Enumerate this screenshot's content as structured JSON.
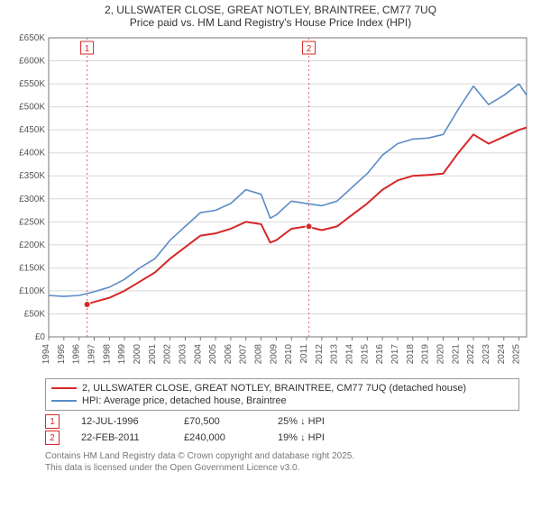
{
  "title_line1": "2, ULLSWATER CLOSE, GREAT NOTLEY, BRAINTREE, CM77 7UQ",
  "title_line2": "Price paid vs. HM Land Registry's House Price Index (HPI)",
  "chart": {
    "type": "line",
    "background_color": "#ffffff",
    "grid_color": "#d8d8d8",
    "plot_border_color": "#777777",
    "x_years": [
      1994,
      1995,
      1996,
      1997,
      1998,
      1999,
      2000,
      2001,
      2002,
      2003,
      2004,
      2005,
      2006,
      2007,
      2008,
      2009,
      2010,
      2011,
      2012,
      2013,
      2014,
      2015,
      2016,
      2017,
      2018,
      2019,
      2020,
      2021,
      2022,
      2023,
      2024,
      2025
    ],
    "xlim": [
      1994,
      2025.5
    ],
    "ylim": [
      0,
      650000
    ],
    "ytick_step": 50000,
    "yticks_labels": [
      "£0",
      "£50K",
      "£100K",
      "£150K",
      "£200K",
      "£250K",
      "£300K",
      "£350K",
      "£400K",
      "£450K",
      "£500K",
      "£550K",
      "£600K",
      "£650K"
    ],
    "marker_lines": [
      {
        "id": "1",
        "x": 1996.53,
        "color": "#d62728"
      },
      {
        "id": "2",
        "x": 2011.15,
        "color": "#d62728"
      }
    ],
    "series": [
      {
        "name": "property",
        "color": "#d62728",
        "line_width": 2,
        "x": [
          1996.5,
          1997,
          1998,
          1999,
          2000,
          2001,
          2002,
          2003,
          2004,
          2005,
          2006,
          2007,
          2008,
          2008.6,
          2009,
          2010,
          2011,
          2012,
          2013,
          2014,
          2015,
          2016,
          2017,
          2018,
          2019,
          2020,
          2021,
          2022,
          2023,
          2024,
          2025,
          2025.5
        ],
        "y": [
          70500,
          76000,
          85000,
          100000,
          120000,
          140000,
          170000,
          195000,
          220000,
          225000,
          235000,
          250000,
          245000,
          205000,
          210000,
          235000,
          240000,
          232000,
          240000,
          265000,
          290000,
          320000,
          340000,
          350000,
          352000,
          355000,
          400000,
          440000,
          420000,
          435000,
          450000,
          455000
        ]
      },
      {
        "name": "hpi",
        "color": "#5b8cc6",
        "line_width": 1.6,
        "x": [
          1994,
          1995,
          1996,
          1997,
          1998,
          1999,
          2000,
          2001,
          2002,
          2003,
          2004,
          2005,
          2006,
          2007,
          2008,
          2008.6,
          2009,
          2010,
          2011,
          2012,
          2013,
          2014,
          2015,
          2016,
          2017,
          2018,
          2019,
          2020,
          2021,
          2022,
          2023,
          2024,
          2025,
          2025.5
        ],
        "y": [
          90000,
          88000,
          90000,
          98000,
          108000,
          125000,
          150000,
          170000,
          210000,
          240000,
          270000,
          275000,
          290000,
          320000,
          310000,
          258000,
          265000,
          295000,
          290000,
          285000,
          295000,
          325000,
          355000,
          395000,
          420000,
          430000,
          432000,
          440000,
          495000,
          545000,
          505000,
          525000,
          550000,
          525000
        ]
      }
    ],
    "price_markers": [
      {
        "x": 1996.53,
        "y": 70500,
        "color": "#d62728"
      },
      {
        "x": 2011.15,
        "y": 240000,
        "color": "#d62728"
      }
    ]
  },
  "legend": {
    "items": [
      {
        "color": "#d62728",
        "label": "2, ULLSWATER CLOSE, GREAT NOTLEY, BRAINTREE, CM77 7UQ (detached house)"
      },
      {
        "color": "#5b8cc6",
        "label": "HPI: Average price, detached house, Braintree"
      }
    ]
  },
  "sales": [
    {
      "badge": "1",
      "date": "12-JUL-1996",
      "price": "£70,500",
      "delta": "25% ↓ HPI",
      "badge_color": "#d62728"
    },
    {
      "badge": "2",
      "date": "22-FEB-2011",
      "price": "£240,000",
      "delta": "19% ↓ HPI",
      "badge_color": "#d62728"
    }
  ],
  "attribution": {
    "line1": "Contains HM Land Registry data © Crown copyright and database right 2025.",
    "line2": "This data is licensed under the Open Government Licence v3.0."
  }
}
